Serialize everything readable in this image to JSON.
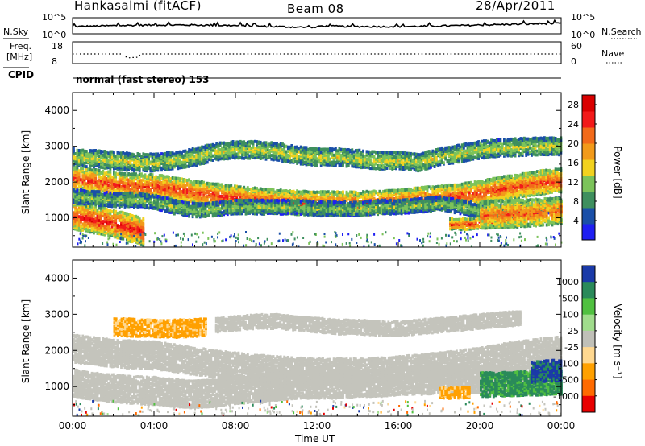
{
  "header": {
    "station": "Hankasalmi (fitACF)",
    "beam": "Beam 08",
    "date": "28/Apr/2011"
  },
  "top_panels": {
    "nsky_label": "N.Sky",
    "nsearch_label": "N.Search",
    "noise_ticks": [
      "10^5",
      "10^0"
    ],
    "freq_label": "Freq.",
    "freq_unit": "[MHz]",
    "freq_ticks": [
      "18",
      "8"
    ],
    "nave_label": "Nave",
    "nave_ticks": [
      "60",
      "0"
    ],
    "cpid_label": "CPID",
    "cpid_value": "normal (fast stereo) 153"
  },
  "colors": {
    "power": [
      "#1f1ff2",
      "#1a4fa8",
      "#3e8f5e",
      "#7cc35a",
      "#f2d21f",
      "#f29a1a",
      "#f26a1a",
      "#f21a1a",
      "#d90000"
    ],
    "velocity": [
      "#e80000",
      "#ff6a00",
      "#ffa000",
      "#ffd890",
      "#c0c0b8",
      "#a0dc8c",
      "#50c040",
      "#2a8a5a",
      "#1a3aa8"
    ],
    "ground_scatter": "#c4c4bc"
  },
  "chart_data": [
    {
      "type": "heatmap",
      "panel": "power",
      "ylabel": "Slant Range [km]",
      "ylim": [
        180,
        4500
      ],
      "yticks": [
        "1000",
        "2000",
        "3000",
        "4000"
      ],
      "xlim": [
        0,
        24
      ],
      "colorbar_label": "Power [dB]",
      "colorbar_ticks": [
        "4",
        "8",
        "12",
        "16",
        "20",
        "24",
        "28"
      ],
      "colorbar_range": [
        0,
        30
      ],
      "bands": [
        {
          "x": [
            0,
            1,
            2,
            3,
            4,
            5,
            6,
            7,
            8,
            9,
            10,
            11,
            12,
            13,
            14,
            15,
            16,
            17,
            18,
            19,
            20,
            21,
            22,
            23,
            24
          ],
          "y": [
            2100,
            2020,
            1940,
            1900,
            1880,
            1800,
            1700,
            1620,
            1560,
            1500,
            1450,
            1420,
            1400,
            1400,
            1400,
            1420,
            1460,
            1520,
            1560,
            1620,
            1700,
            1820,
            1900,
            1990,
            2050
          ],
          "width": 340,
          "value": 24
        },
        {
          "x": [
            0,
            0.5,
            1,
            1.5,
            2,
            2.5,
            3,
            3.5
          ],
          "y": [
            1050,
            1000,
            950,
            900,
            840,
            760,
            680,
            600
          ],
          "width": 400,
          "value": 26
        },
        {
          "x": [
            0,
            1,
            2,
            3,
            4,
            5,
            6,
            7,
            8,
            9,
            10,
            11,
            12,
            13,
            14,
            15,
            16,
            17,
            18,
            19,
            20,
            21,
            22,
            23,
            24
          ],
          "y": [
            2700,
            2650,
            2600,
            2550,
            2550,
            2600,
            2700,
            2850,
            2900,
            2900,
            2850,
            2750,
            2700,
            2700,
            2650,
            2600,
            2600,
            2550,
            2700,
            2800,
            2900,
            2950,
            2980,
            3000,
            3000
          ],
          "width": 240,
          "value": 14
        },
        {
          "x": [
            0,
            1,
            2,
            3,
            4,
            5,
            6,
            7,
            8,
            9,
            10,
            11,
            12,
            13,
            14,
            15,
            16,
            17,
            18,
            19,
            20,
            21,
            22,
            23,
            24
          ],
          "y": [
            1600,
            1550,
            1500,
            1500,
            1450,
            1300,
            1200,
            1250,
            1300,
            1300,
            1300,
            1300,
            1250,
            1250,
            1250,
            1300,
            1300,
            1350,
            1400,
            1300,
            1200,
            1150,
            1200,
            1300,
            1400
          ],
          "width": 220,
          "value": 12
        },
        {
          "x": [
            18.5,
            19,
            19.5,
            20,
            20.5,
            21,
            21.5
          ],
          "y": [
            820,
            820,
            830,
            850,
            860,
            880,
            900
          ],
          "width": 150,
          "value": 26
        },
        {
          "x": [
            20,
            21,
            22,
            23,
            24
          ],
          "y": [
            1080,
            1100,
            1120,
            1150,
            1200
          ],
          "width": 380,
          "value": 22
        }
      ]
    },
    {
      "type": "heatmap",
      "panel": "velocity",
      "ylabel": "Slant Range [km]",
      "ylim": [
        180,
        4500
      ],
      "yticks": [
        "1000",
        "2000",
        "3000",
        "4000"
      ],
      "xlim": [
        0,
        24
      ],
      "xticks": [
        "00:00",
        "04:00",
        "08:00",
        "12:00",
        "16:00",
        "20:00",
        "00:00"
      ],
      "xlabel": "Time UT",
      "colorbar_label": "Velocity [m s⁻¹]",
      "colorbar_ticks": [
        "1000",
        "500",
        "100",
        "25",
        "-25",
        "-100",
        "-500",
        "-1000"
      ],
      "bands": [
        {
          "x": [
            0,
            1,
            2,
            3,
            4,
            5,
            6,
            7,
            8,
            9,
            10,
            11,
            12,
            13,
            14,
            15,
            16,
            17,
            18,
            19,
            20,
            21,
            22,
            23,
            24
          ],
          "y": [
            2050,
            1980,
            1920,
            1880,
            1860,
            1780,
            1700,
            1620,
            1560,
            1500,
            1450,
            1420,
            1400,
            1400,
            1400,
            1420,
            1460,
            1500,
            1560,
            1620,
            1700,
            1800,
            1880,
            1950,
            2000
          ],
          "width": 360,
          "value": 0
        },
        {
          "x": [
            0,
            1,
            2,
            3,
            4,
            5,
            6,
            7,
            8,
            9,
            10,
            11,
            12,
            13,
            14,
            15,
            16,
            17,
            18,
            19,
            20,
            21,
            22,
            23,
            24
          ],
          "y": [
            1100,
            1000,
            950,
            900,
            880,
            820,
            780,
            820,
            900,
            950,
            1000,
            1050,
            1050,
            1050,
            1100,
            1100,
            1150,
            1150,
            1200,
            1200,
            1200,
            1150,
            1150,
            1200,
            1200
          ],
          "width": 380,
          "value": 0
        },
        {
          "x": [
            7,
            8,
            9,
            10,
            11,
            12,
            13,
            14,
            15,
            16,
            17,
            18,
            19,
            20,
            21,
            22
          ],
          "y": [
            2700,
            2750,
            2800,
            2800,
            2750,
            2700,
            2650,
            2650,
            2600,
            2600,
            2650,
            2700,
            2750,
            2800,
            2850,
            2900
          ],
          "width": 200,
          "value": 0
        },
        {
          "x": [
            2,
            2.5,
            3,
            3.5,
            4,
            4.5,
            5,
            5.5,
            6,
            6.5
          ],
          "y": [
            2650,
            2640,
            2630,
            2620,
            2610,
            2600,
            2600,
            2610,
            2620,
            2640
          ],
          "width": 240,
          "value": -100
        },
        {
          "x": [
            20,
            21,
            22,
            23,
            24
          ],
          "y": [
            1050,
            1060,
            1080,
            1100,
            1100
          ],
          "width": 350,
          "value": 200
        },
        {
          "x": [
            22.5,
            23,
            23.5,
            24
          ],
          "y": [
            1400,
            1420,
            1440,
            1450
          ],
          "width": 300,
          "value": 600
        },
        {
          "x": [
            18,
            18.5,
            19,
            19.5
          ],
          "y": [
            820,
            820,
            830,
            840
          ],
          "width": 160,
          "value": -200
        }
      ]
    }
  ]
}
